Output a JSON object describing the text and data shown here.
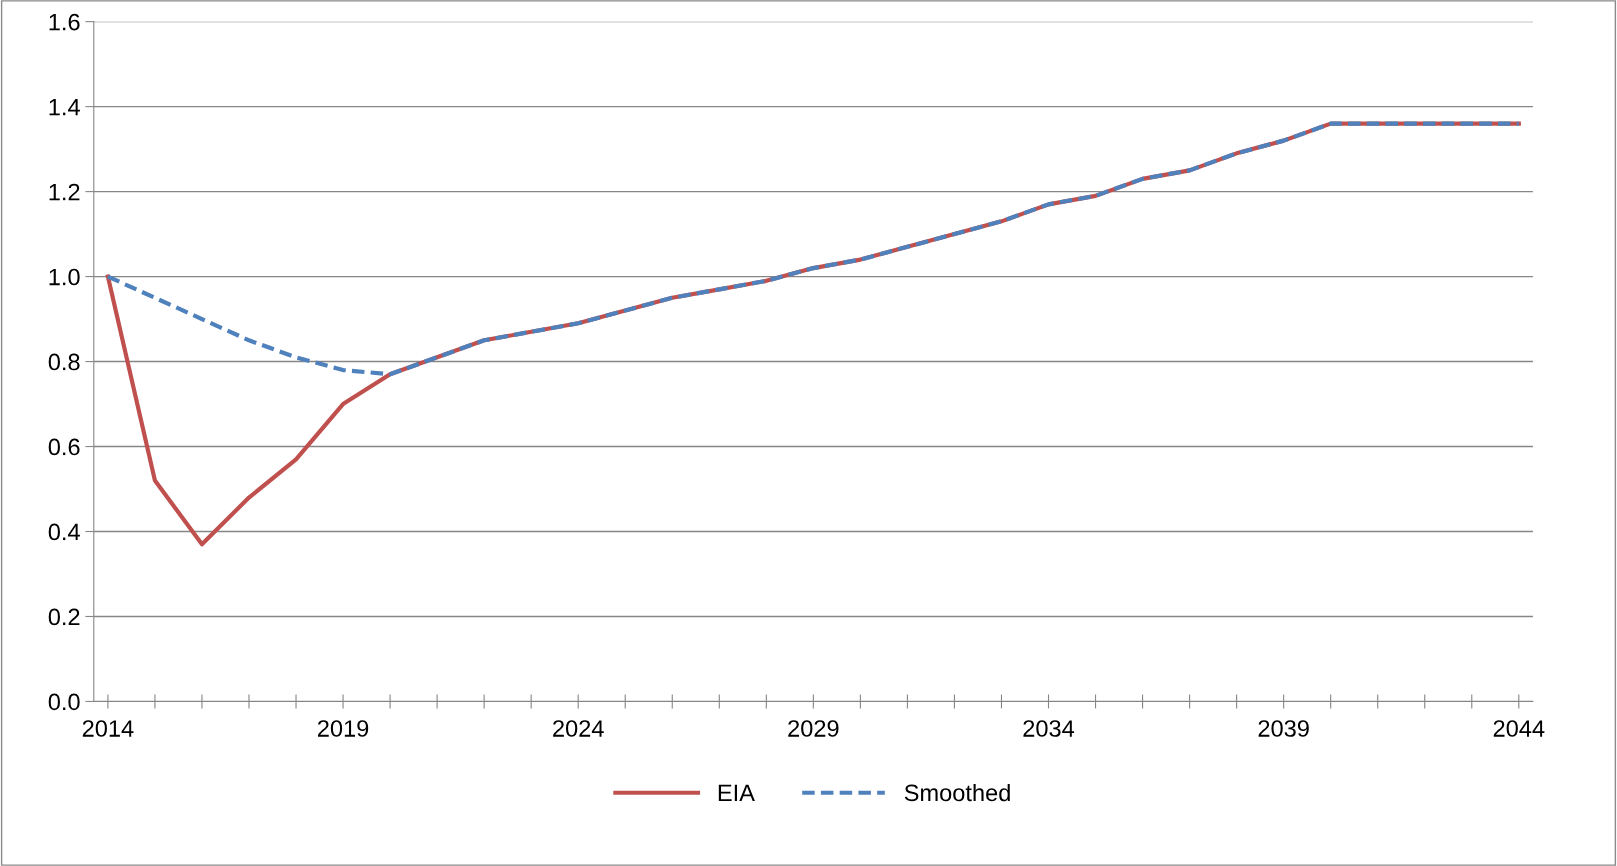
{
  "chart_data": {
    "type": "line",
    "categories": [
      "2014",
      null,
      null,
      null,
      null,
      "2019",
      null,
      null,
      null,
      null,
      "2024",
      null,
      null,
      null,
      null,
      "2029",
      null,
      null,
      null,
      null,
      "2034",
      null,
      null,
      null,
      null,
      "2039",
      null,
      null,
      null,
      null,
      "2044"
    ],
    "series": [
      {
        "name": "EIA",
        "color": "#c0504d",
        "line_style": "solid",
        "values": [
          1.0,
          0.52,
          0.37,
          0.48,
          0.57,
          0.7,
          0.77,
          0.81,
          0.85,
          0.87,
          0.89,
          0.92,
          0.95,
          0.97,
          0.99,
          1.02,
          1.04,
          1.07,
          1.1,
          1.13,
          1.17,
          1.19,
          1.23,
          1.25,
          1.29,
          1.32,
          1.36,
          1.36,
          1.36,
          1.36,
          1.36
        ]
      },
      {
        "name": "Smoothed",
        "color": "#4f81bd",
        "line_style": "dashed",
        "values": [
          1.0,
          0.95,
          0.9,
          0.85,
          0.81,
          0.78,
          0.77,
          0.81,
          0.85,
          0.87,
          0.89,
          0.92,
          0.95,
          0.97,
          0.99,
          1.02,
          1.04,
          1.07,
          1.1,
          1.13,
          1.17,
          1.19,
          1.23,
          1.25,
          1.29,
          1.32,
          1.36,
          1.36,
          1.36,
          1.36,
          1.36
        ]
      }
    ],
    "ylim": [
      0,
      1.6
    ],
    "yticks": [
      {
        "value": 0,
        "label": "0.0"
      },
      {
        "value": 0.2,
        "label": "0.2"
      },
      {
        "value": 0.4,
        "label": "0.4"
      },
      {
        "value": 0.6,
        "label": "0.6"
      },
      {
        "value": 0.8,
        "label": "0.8"
      },
      {
        "value": 1.0,
        "label": "1.0"
      },
      {
        "value": 1.2,
        "label": "1.2"
      },
      {
        "value": 1.4,
        "label": "1.4"
      },
      {
        "value": 1.6,
        "label": "1.6"
      }
    ],
    "grid": "y",
    "legend": "bottom",
    "marker": "none"
  }
}
